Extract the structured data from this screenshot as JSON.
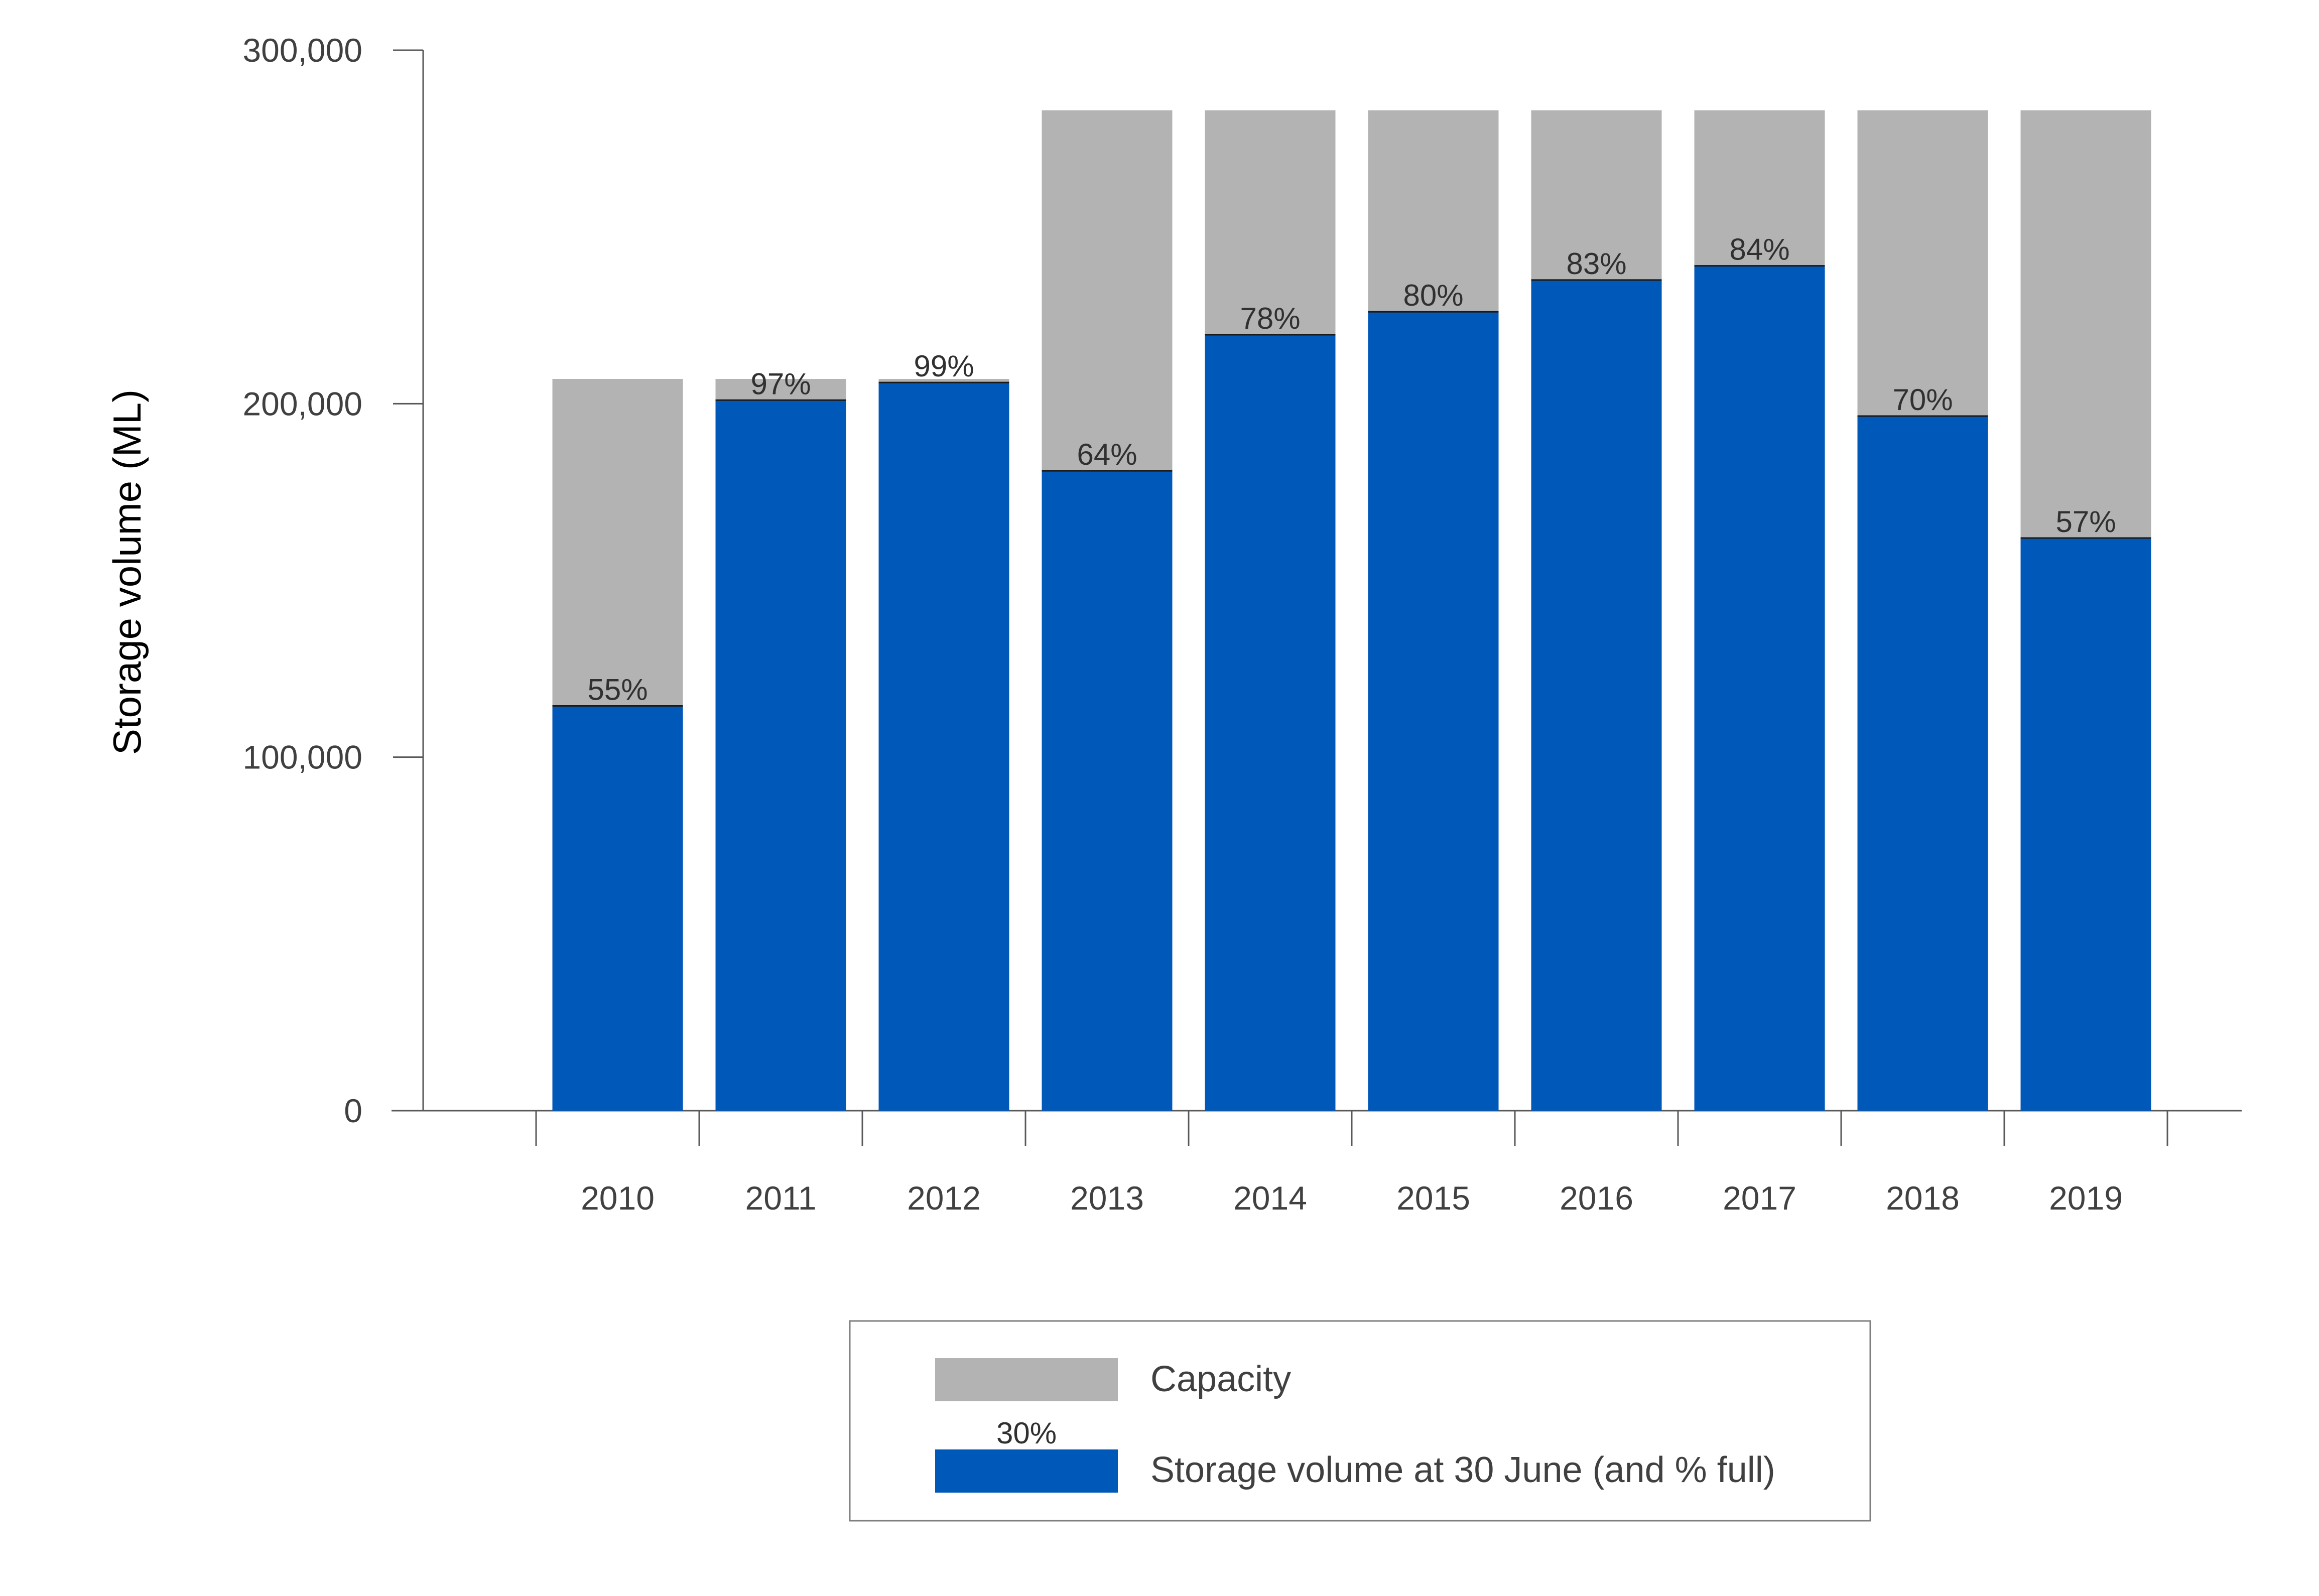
{
  "chart_data": {
    "type": "bar",
    "stacked": "overlay",
    "title": "",
    "xlabel": "",
    "ylabel": "Storage volume (ML)",
    "ylim": [
      0,
      300000
    ],
    "yticks": [
      0,
      100000,
      200000,
      300000
    ],
    "ytick_labels": [
      "0",
      "100,000",
      "200,000",
      "300,000"
    ],
    "grid": false,
    "legend_position": "bottom",
    "categories": [
      "2010",
      "2011",
      "2012",
      "2013",
      "2014",
      "2015",
      "2016",
      "2017",
      "2018",
      "2019"
    ],
    "series": [
      {
        "name": "Capacity",
        "color": "#b3b3b3",
        "values": [
          207000,
          207000,
          207000,
          283000,
          283000,
          283000,
          283000,
          283000,
          283000,
          283000
        ]
      },
      {
        "name": "Storage volume at 30 June (and % full)",
        "color": "#0058b8",
        "values": [
          114500,
          201000,
          206000,
          181000,
          219500,
          226000,
          235000,
          239000,
          196500,
          162000
        ],
        "labels": [
          "55%",
          "97%",
          "99%",
          "64%",
          "78%",
          "80%",
          "83%",
          "84%",
          "70%",
          "57%"
        ]
      }
    ],
    "legend": {
      "sample_label": "30%"
    }
  }
}
